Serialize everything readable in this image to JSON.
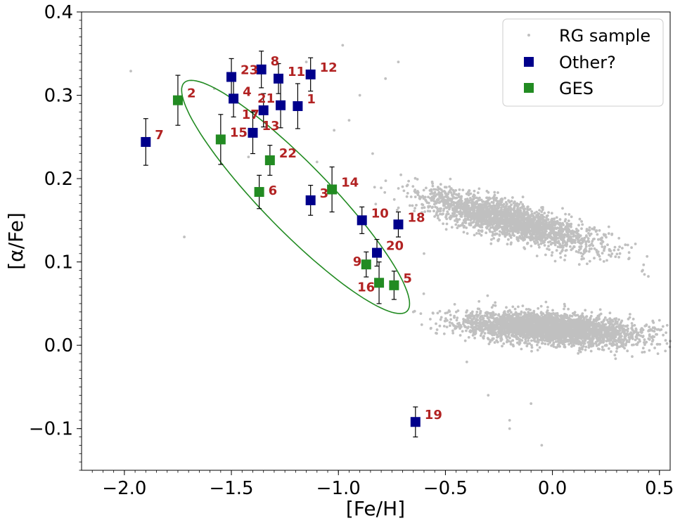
{
  "chart_data": {
    "type": "scatter",
    "xlabel": "[Fe/H]",
    "ylabel": "[α/Fe]",
    "xlim": [
      -2.2,
      0.55
    ],
    "ylim": [
      -0.15,
      0.4
    ],
    "x_ticks": [
      -2.0,
      -1.5,
      -1.0,
      -0.5,
      0.0,
      0.5
    ],
    "x_tick_labels": [
      "−2.0",
      "−1.5",
      "−1.0",
      "−0.5",
      "0.0",
      "0.5"
    ],
    "y_ticks": [
      -0.1,
      0.0,
      0.1,
      0.2,
      0.3,
      0.4
    ],
    "y_tick_labels": [
      "−0.1",
      "0.0",
      "0.1",
      "0.2",
      "0.3",
      "0.4"
    ],
    "grid": false,
    "legend_position": "top-right",
    "legend": [
      {
        "label": "RG sample",
        "marker": "dot",
        "color": "#c0c0c0"
      },
      {
        "label": "Other?",
        "marker": "square",
        "color": "#00008b"
      },
      {
        "label": "GES",
        "marker": "square",
        "color": "#228b22"
      }
    ],
    "label_color": "#b22222",
    "ellipse": {
      "center": [
        -1.2,
        0.178
      ],
      "semi_major_data": [
        0.53,
        -0.133
      ],
      "semi_minor_data": [
        0.052,
        0.0435
      ],
      "color": "#228b22"
    },
    "stars": [
      {
        "id": "1",
        "group": "Other?",
        "x": -1.19,
        "y": 0.287,
        "err": 0.027,
        "label_dx": 6,
        "label_dy": -4
      },
      {
        "id": "2",
        "group": "GES",
        "x": -1.75,
        "y": 0.294,
        "err": 0.03,
        "label_dx": 6,
        "label_dy": -4
      },
      {
        "id": "3",
        "group": "Other?",
        "x": -1.13,
        "y": 0.174,
        "err": 0.018,
        "label_dx": 6,
        "label_dy": -4
      },
      {
        "id": "4",
        "group": "Other?",
        "x": -1.49,
        "y": 0.296,
        "err": 0.022,
        "label_dx": 6,
        "label_dy": -4
      },
      {
        "id": "5",
        "group": "GES",
        "x": -0.74,
        "y": 0.072,
        "err": 0.017,
        "label_dx": 6,
        "label_dy": -4
      },
      {
        "id": "6",
        "group": "GES",
        "x": -1.37,
        "y": 0.184,
        "err": 0.02,
        "label_dx": 6,
        "label_dy": 4
      },
      {
        "id": "7",
        "group": "Other?",
        "x": -1.9,
        "y": 0.244,
        "err": 0.028,
        "label_dx": 6,
        "label_dy": -4
      },
      {
        "id": "8",
        "group": "Other?",
        "x": -1.36,
        "y": 0.331,
        "err": 0.022,
        "label_dx": 6,
        "label_dy": -6
      },
      {
        "id": "9",
        "group": "GES",
        "x": -0.87,
        "y": 0.097,
        "err": 0.015,
        "label_dx": -26,
        "label_dy": 2
      },
      {
        "id": "10",
        "group": "Other?",
        "x": -0.89,
        "y": 0.15,
        "err": 0.016,
        "label_dx": 6,
        "label_dy": -4
      },
      {
        "id": "11",
        "group": "Other?",
        "x": -1.28,
        "y": 0.32,
        "err": 0.018,
        "label_dx": 6,
        "label_dy": -4
      },
      {
        "id": "12",
        "group": "Other?",
        "x": -1.13,
        "y": 0.325,
        "err": 0.02,
        "label_dx": 6,
        "label_dy": -4
      },
      {
        "id": "13",
        "group": "Other?",
        "x": -1.4,
        "y": 0.255,
        "err": 0.025,
        "label_dx": 6,
        "label_dy": -4
      },
      {
        "id": "14",
        "group": "GES",
        "x": -1.03,
        "y": 0.187,
        "err": 0.027,
        "label_dx": 6,
        "label_dy": -4
      },
      {
        "id": "15",
        "group": "GES",
        "x": -1.55,
        "y": 0.247,
        "err": 0.03,
        "label_dx": 6,
        "label_dy": -4
      },
      {
        "id": "16",
        "group": "GES",
        "x": -0.81,
        "y": 0.075,
        "err": 0.025,
        "label_dx": -38,
        "label_dy": 12
      },
      {
        "id": "17",
        "group": "Other?",
        "x": -1.35,
        "y": 0.282,
        "err": 0.02,
        "label_dx": -38,
        "label_dy": 12
      },
      {
        "id": "18",
        "group": "Other?",
        "x": -0.72,
        "y": 0.145,
        "err": 0.015,
        "label_dx": 6,
        "label_dy": -4
      },
      {
        "id": "19",
        "group": "Other?",
        "x": -0.64,
        "y": -0.092,
        "err": 0.018,
        "label_dx": 6,
        "label_dy": -4
      },
      {
        "id": "20",
        "group": "Other?",
        "x": -0.82,
        "y": 0.111,
        "err": 0.016,
        "label_dx": 6,
        "label_dy": -4
      },
      {
        "id": "21",
        "group": "Other?",
        "x": -1.27,
        "y": 0.288,
        "err": 0.027,
        "label_dx": -40,
        "label_dy": -4
      },
      {
        "id": "22",
        "group": "GES",
        "x": -1.32,
        "y": 0.222,
        "err": 0.018,
        "label_dx": 6,
        "label_dy": -4
      },
      {
        "id": "23",
        "group": "Other?",
        "x": -1.5,
        "y": 0.322,
        "err": 0.022,
        "label_dx": 6,
        "label_dy": -4
      }
    ],
    "rg_sample_outliers": [
      [
        -1.97,
        0.329
      ],
      [
        -1.72,
        0.13
      ],
      [
        -1.58,
        0.308
      ],
      [
        -1.42,
        0.226
      ],
      [
        -1.15,
        0.34
      ],
      [
        -0.98,
        0.36
      ],
      [
        -1.02,
        0.258
      ],
      [
        -0.9,
        0.3
      ],
      [
        -0.78,
        0.32
      ],
      [
        -0.72,
        0.34
      ],
      [
        -1.1,
        0.22
      ],
      [
        -0.95,
        0.27
      ],
      [
        -0.84,
        0.23
      ],
      [
        -0.6,
        0.11
      ],
      [
        -0.4,
        -0.02
      ],
      [
        -0.3,
        -0.06
      ],
      [
        -0.2,
        -0.09
      ],
      [
        -0.2,
        -0.1
      ],
      [
        0.43,
        0.085
      ],
      [
        0.5,
        0.03
      ],
      [
        0.55,
        0.005
      ],
      [
        -0.05,
        -0.12
      ],
      [
        -0.1,
        -0.07
      ],
      [
        -0.65,
        0.04
      ]
    ],
    "rg_sample_clouds": [
      {
        "center": [
          -0.2,
          0.15
        ],
        "direction": [
          0.44,
          -0.16
        ],
        "spread_major": 0.22,
        "spread_minor": 0.05,
        "count": 2300,
        "seed": 7
      },
      {
        "center": [
          0.0,
          0.02
        ],
        "direction": [
          0.43,
          -0.04
        ],
        "spread_major": 0.2,
        "spread_minor": 0.045,
        "count": 3300,
        "seed": 11
      }
    ]
  }
}
